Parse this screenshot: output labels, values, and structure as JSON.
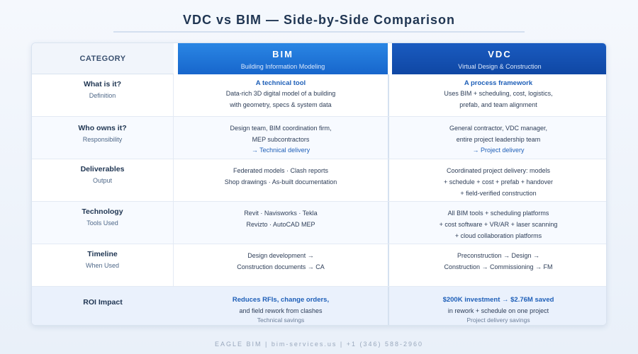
{
  "title": "VDC vs BIM — Side-by-Side Comparison",
  "header": {
    "category": "CATEGORY",
    "bim": {
      "name": "BIM",
      "subtitle": "Building Information Modeling"
    },
    "vdc": {
      "name": "VDC",
      "subtitle": "Virtual Design & Construction"
    }
  },
  "rows": [
    {
      "category": "What is it?",
      "sub": "Definition",
      "bim": {
        "lead": "A technical tool",
        "lines": [
          "Data-rich 3D digital model of a building",
          "with geometry, specs & system data"
        ]
      },
      "vdc": {
        "lead": "A process framework",
        "lines": [
          "Uses BIM + scheduling, cost, logistics,",
          "prefab, and team alignment"
        ]
      }
    },
    {
      "category": "Who owns it?",
      "sub": "Responsibility",
      "bim": {
        "lines": [
          "Design team, BIM coordination firm,",
          "MEP subcontractors"
        ],
        "accent": "→ Technical delivery"
      },
      "vdc": {
        "lines": [
          "General contractor, VDC manager,",
          "entire project leadership team"
        ],
        "accent": "→ Project delivery"
      }
    },
    {
      "category": "Deliverables",
      "sub": "Output",
      "bim": {
        "lines": [
          "Federated models · Clash reports",
          "Shop drawings · As-built documentation"
        ]
      },
      "vdc": {
        "lines": [
          "Coordinated project delivery: models",
          "+ schedule + cost + prefab + handover",
          "+ field-verified construction"
        ]
      }
    },
    {
      "category": "Technology",
      "sub": "Tools Used",
      "bim": {
        "lines": [
          "Revit · Navisworks · Tekla",
          "Revizto · AutoCAD MEP"
        ]
      },
      "vdc": {
        "lines": [
          "All BIM tools + scheduling platforms",
          "+ cost software + VR/AR + laser scanning",
          "+ cloud collaboration platforms"
        ]
      }
    },
    {
      "category": "Timeline",
      "sub": "When Used",
      "bim": {
        "lines": [
          "Design development →",
          "Construction documents → CA"
        ]
      },
      "vdc": {
        "lines": [
          "Preconstruction → Design →",
          "Construction → Commissioning → FM"
        ]
      }
    }
  ],
  "roi": {
    "category": "ROI Impact",
    "bim": {
      "lead": "Reduces RFIs, change orders,",
      "line": "and field rework from clashes",
      "note": "Technical savings"
    },
    "vdc": {
      "lead": "$200K investment → $2.76M saved",
      "line": "in rework + schedule on one project",
      "note": "Project delivery savings"
    }
  },
  "footer": "EAGLE BIM  |  bim-services.us  |  +1 (346) 588-2960"
}
